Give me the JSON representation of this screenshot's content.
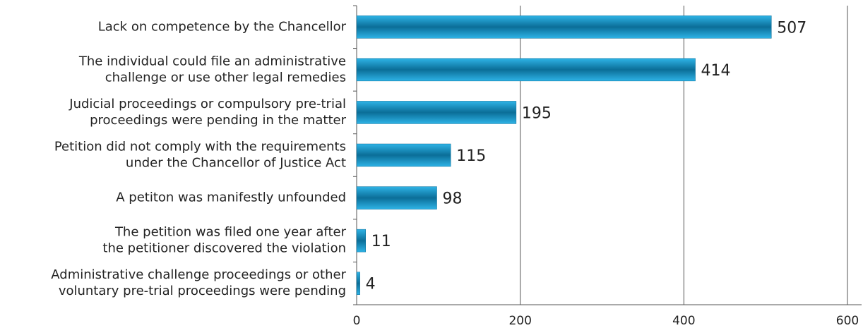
{
  "chart_data": {
    "type": "bar",
    "orientation": "horizontal",
    "categories": [
      [
        "Lack on competence by the Chancellor"
      ],
      [
        "The individual could file an administrative",
        "challenge or use other legal remedies"
      ],
      [
        "Judicial proceedings or compulsory pre-trial",
        "proceedings were pending in the matter"
      ],
      [
        "Petition did not comply with the requirements",
        "under the Chancellor of Justice Act"
      ],
      [
        "A petiton was manifestly unfounded"
      ],
      [
        "The petition was filed one year after",
        "the petitioner discovered the violation"
      ],
      [
        "Administrative challenge proceedings or other",
        "voluntary pre-trial proceedings were pending"
      ]
    ],
    "values": [
      507,
      414,
      195,
      115,
      98,
      11,
      4
    ],
    "color": "#0b6e98",
    "xlim": [
      0,
      600
    ],
    "xticks": [
      0,
      200,
      400,
      600
    ],
    "grid": true
  }
}
